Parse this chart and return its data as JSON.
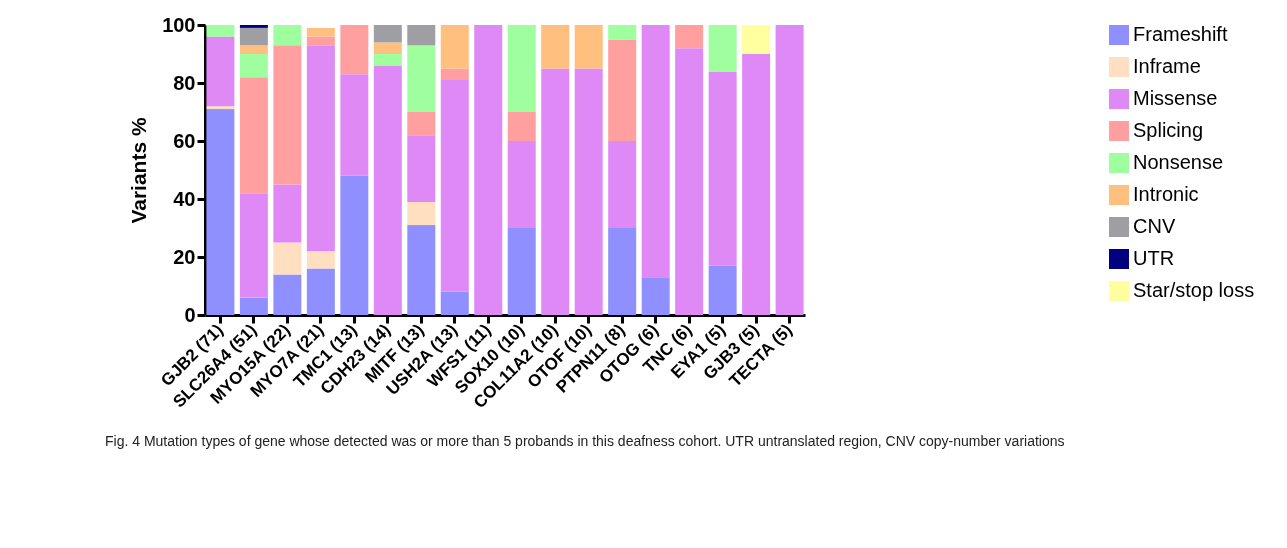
{
  "chart_data": {
    "type": "bar",
    "stacked": true,
    "ylabel": "Variants %",
    "categories": [
      "GJB2 (71)",
      "SLC26A4 (51)",
      "MYO15A (22)",
      "MYO7A (21)",
      "TMC1 (13)",
      "CDH23 (14)",
      "MITF (13)",
      "USH2A (13)",
      "WFS1 (11)",
      "SOX10 (10)",
      "COL11A2 (10)",
      "OTOF (10)",
      "PTPN11 (8)",
      "OTOG (6)",
      "TNC (6)",
      "EYA1 (5)",
      "GJB3 (5)",
      "TECTA (5)"
    ],
    "series": [
      {
        "name": "Frameshift",
        "color": "#8f8fff",
        "values": [
          71,
          6,
          14,
          16,
          48,
          null,
          31,
          8,
          null,
          30,
          null,
          null,
          30,
          13,
          null,
          17,
          null,
          null
        ]
      },
      {
        "name": "Inframe",
        "color": "#ffdfbf",
        "values": [
          1,
          null,
          11,
          6,
          null,
          null,
          8,
          null,
          null,
          null,
          null,
          null,
          null,
          null,
          null,
          null,
          null,
          null
        ]
      },
      {
        "name": "Missense",
        "color": "#df89f7",
        "values": [
          24,
          36,
          20,
          71,
          35,
          86,
          23,
          73,
          100,
          30,
          85,
          85,
          30,
          87,
          92,
          67,
          90,
          100
        ]
      },
      {
        "name": "Splicing",
        "color": "#ff9f9f",
        "values": [
          null,
          40,
          48,
          3,
          17,
          null,
          8,
          4,
          null,
          10,
          null,
          null,
          35,
          null,
          8,
          null,
          null,
          null
        ]
      },
      {
        "name": "Nonsense",
        "color": "#9fff9f",
        "values": [
          4,
          8,
          7,
          null,
          null,
          4,
          23,
          null,
          null,
          30,
          null,
          null,
          5,
          null,
          null,
          16,
          null,
          null
        ]
      },
      {
        "name": "Intronic",
        "color": "#ffbf7f",
        "values": [
          null,
          3,
          null,
          3,
          null,
          4,
          null,
          15,
          null,
          null,
          15,
          15,
          null,
          null,
          null,
          null,
          null,
          null
        ]
      },
      {
        "name": "CNV",
        "color": "#9f9fa3",
        "values": [
          null,
          6,
          null,
          null,
          null,
          6,
          7,
          null,
          null,
          null,
          null,
          null,
          null,
          null,
          null,
          null,
          null,
          null
        ]
      },
      {
        "name": "UTR",
        "color": "#000080",
        "values": [
          null,
          1,
          null,
          null,
          null,
          null,
          null,
          null,
          null,
          null,
          null,
          null,
          null,
          null,
          null,
          null,
          null,
          null
        ]
      },
      {
        "name": "Star/stop loss",
        "color": "#ffff9f",
        "values": [
          null,
          null,
          null,
          null,
          null,
          null,
          null,
          null,
          null,
          null,
          null,
          null,
          null,
          null,
          null,
          null,
          10,
          null
        ]
      }
    ],
    "ylim": [
      0,
      100
    ],
    "yticks": [
      0,
      20,
      40,
      60,
      80,
      100
    ],
    "grid": false,
    "legend": "right",
    "annotations": [
      "Fig. 4  Mutation types of gene whose detected was or more than 5 probands in this deafness cohort. UTR untranslated region, CNV copy-number variations"
    ]
  }
}
